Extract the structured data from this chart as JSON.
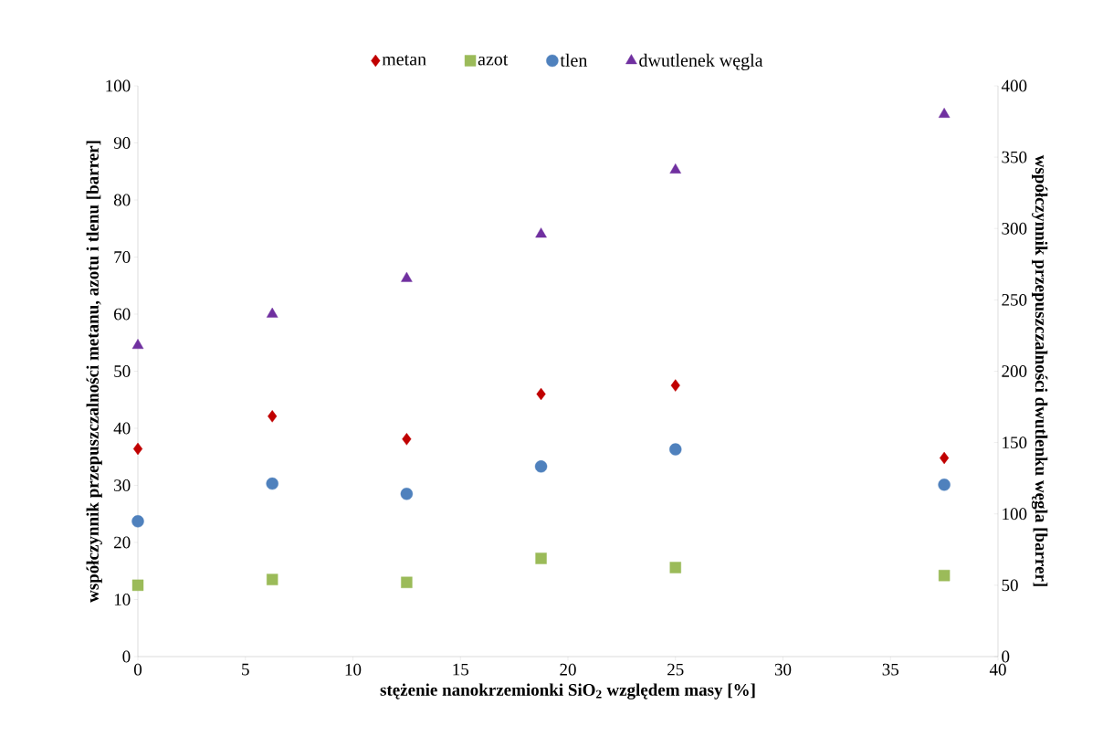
{
  "chart_data": {
    "type": "scatter",
    "xlabel": "stężenie nanokrzemionki SiO$_{2}$ względem masy [%]",
    "ylabel": "współczynnik  przepuszczalności metanu, azotu i tlenu [barrer]",
    "y2label": "współczynnik  przepuszczalności dwutlenku węgla [barrer]",
    "x": [
      0,
      6.25,
      12.5,
      18.75,
      25,
      37.5
    ],
    "series": [
      {
        "name": "metan",
        "color": "#c00000",
        "marker": "diamond",
        "values": [
          36.4,
          42.1,
          38.1,
          46.0,
          47.5,
          34.8
        ]
      },
      {
        "name": "azot",
        "color": "#9bbb59",
        "marker": "square",
        "values": [
          12.5,
          13.5,
          13.0,
          17.2,
          15.6,
          14.2
        ]
      },
      {
        "name": "tlen",
        "color": "#4f81bd",
        "marker": "circle",
        "values": [
          23.7,
          30.3,
          28.5,
          33.3,
          36.3,
          30.1
        ]
      },
      {
        "name": "dwutlenek węgla",
        "color": "#7030a0",
        "marker": "triangle",
        "axis": "y2",
        "values": [
          218,
          240,
          265,
          296,
          341,
          380
        ]
      }
    ],
    "xlim": [
      0,
      40
    ],
    "xticks": [
      0,
      5,
      10,
      15,
      20,
      25,
      30,
      35,
      40
    ],
    "ylim": [
      0,
      100
    ],
    "yticks": [
      0,
      10,
      20,
      30,
      40,
      50,
      60,
      70,
      80,
      90,
      100
    ],
    "y2lim": [
      0,
      400
    ],
    "y2ticks": [
      0,
      50,
      100,
      150,
      200,
      250,
      300,
      350,
      400
    ],
    "grid": false,
    "legend": "top"
  }
}
